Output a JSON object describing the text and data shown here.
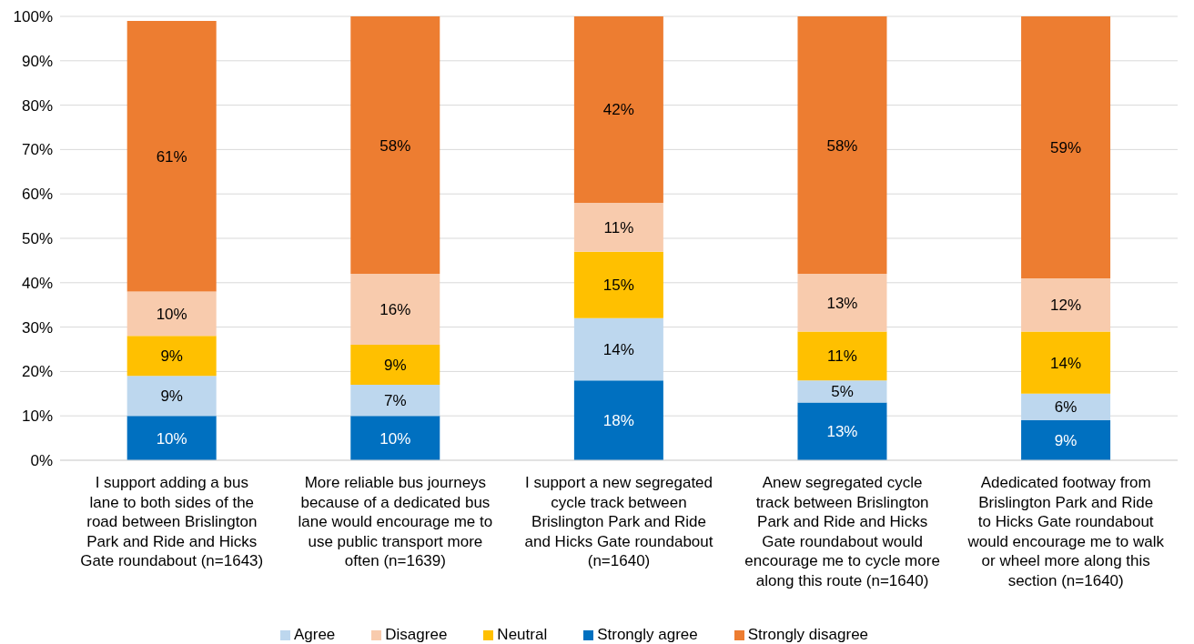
{
  "chart_data": {
    "type": "bar",
    "stacked": true,
    "categories": [
      "I support adding a bus lane to both sides of the road between Brislington Park and Ride and Hicks Gate roundabout (n=1643)",
      "More reliable bus journeys because of a dedicated bus lane would encourage me to use public transport more often (n=1639)",
      "I support a new segregated cycle track between Brislington Park and Ride and Hicks Gate roundabout (n=1640)",
      "Anew segregated cycle track between Brislington Park and Ride and Hicks Gate roundabout would encourage me to cycle more along this route (n=1640)",
      "Adedicated footway from Brislington Park and Ride to Hicks Gate roundabout would encourage me to walk or wheel more along this section (n=1640)"
    ],
    "series": [
      {
        "name": "Strongly agree",
        "color": "#0070c0",
        "values": [
          10,
          10,
          18,
          13,
          9
        ],
        "value_labels": [
          "10%",
          "10%",
          "18%",
          "13%",
          "9%"
        ]
      },
      {
        "name": "Agree",
        "color": "#bdd7ee",
        "values": [
          9,
          7,
          14,
          5,
          6
        ],
        "value_labels": [
          "9%",
          "7%",
          "14%",
          "5%",
          "6%"
        ]
      },
      {
        "name": "Neutral",
        "color": "#ffc000",
        "values": [
          9,
          9,
          15,
          11,
          14
        ],
        "value_labels": [
          "9%",
          "9%",
          "15%",
          "11%",
          "14%"
        ]
      },
      {
        "name": "Disagree",
        "color": "#f8cbad",
        "values": [
          10,
          16,
          11,
          13,
          12
        ],
        "value_labels": [
          "10%",
          "16%",
          "11%",
          "13%",
          "12%"
        ]
      },
      {
        "name": "Strongly disagree",
        "color": "#ed7d31",
        "values": [
          61,
          58,
          42,
          58,
          59
        ],
        "value_labels": [
          "61%",
          "58%",
          "42%",
          "58%",
          "59%"
        ]
      }
    ],
    "ylim": [
      0,
      100
    ],
    "yticks": [
      {
        "value": 0,
        "label": "0%"
      },
      {
        "value": 10,
        "label": "10%"
      },
      {
        "value": 20,
        "label": "20%"
      },
      {
        "value": 30,
        "label": "30%"
      },
      {
        "value": 40,
        "label": "40%"
      },
      {
        "value": 50,
        "label": "50%"
      },
      {
        "value": 60,
        "label": "60%"
      },
      {
        "value": 70,
        "label": "70%"
      },
      {
        "value": 80,
        "label": "80%"
      },
      {
        "value": 90,
        "label": "90%"
      },
      {
        "value": 100,
        "label": "100%"
      }
    ],
    "grid": "y",
    "legend": "bottom"
  }
}
